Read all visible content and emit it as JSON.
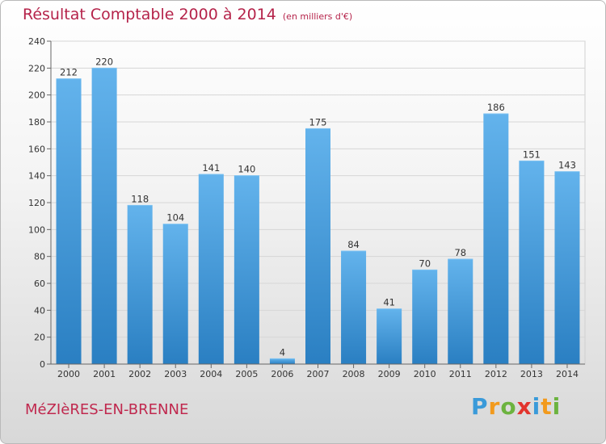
{
  "title": "Résultat Comptable 2000 à 2014",
  "subtitle": "(en milliers d'€)",
  "commune": "MéZIèRES-EN-BRENNE",
  "logo": {
    "letters": [
      "P",
      "r",
      "o",
      "x",
      "i",
      "t",
      "i"
    ],
    "colors": [
      "#3a9ad9",
      "#f29a1d",
      "#6cb33f",
      "#e2342d",
      "#3a9ad9",
      "#f29a1d",
      "#6cb33f"
    ]
  },
  "colors": {
    "bar_light": "#63b3ec",
    "bar_dark": "#2a7fc2",
    "title": "#b5234a"
  },
  "chart_data": {
    "type": "bar",
    "categories": [
      "2000",
      "2001",
      "2002",
      "2003",
      "2004",
      "2005",
      "2006",
      "2007",
      "2008",
      "2009",
      "2010",
      "2011",
      "2012",
      "2013",
      "2014"
    ],
    "values": [
      212,
      220,
      118,
      104,
      141,
      140,
      4,
      175,
      84,
      41,
      70,
      78,
      186,
      151,
      143
    ],
    "ylim": [
      0,
      240
    ],
    "yticks": [
      0,
      20,
      40,
      60,
      80,
      100,
      120,
      140,
      160,
      180,
      200,
      220,
      240
    ],
    "grid": true,
    "data_labels": true
  }
}
